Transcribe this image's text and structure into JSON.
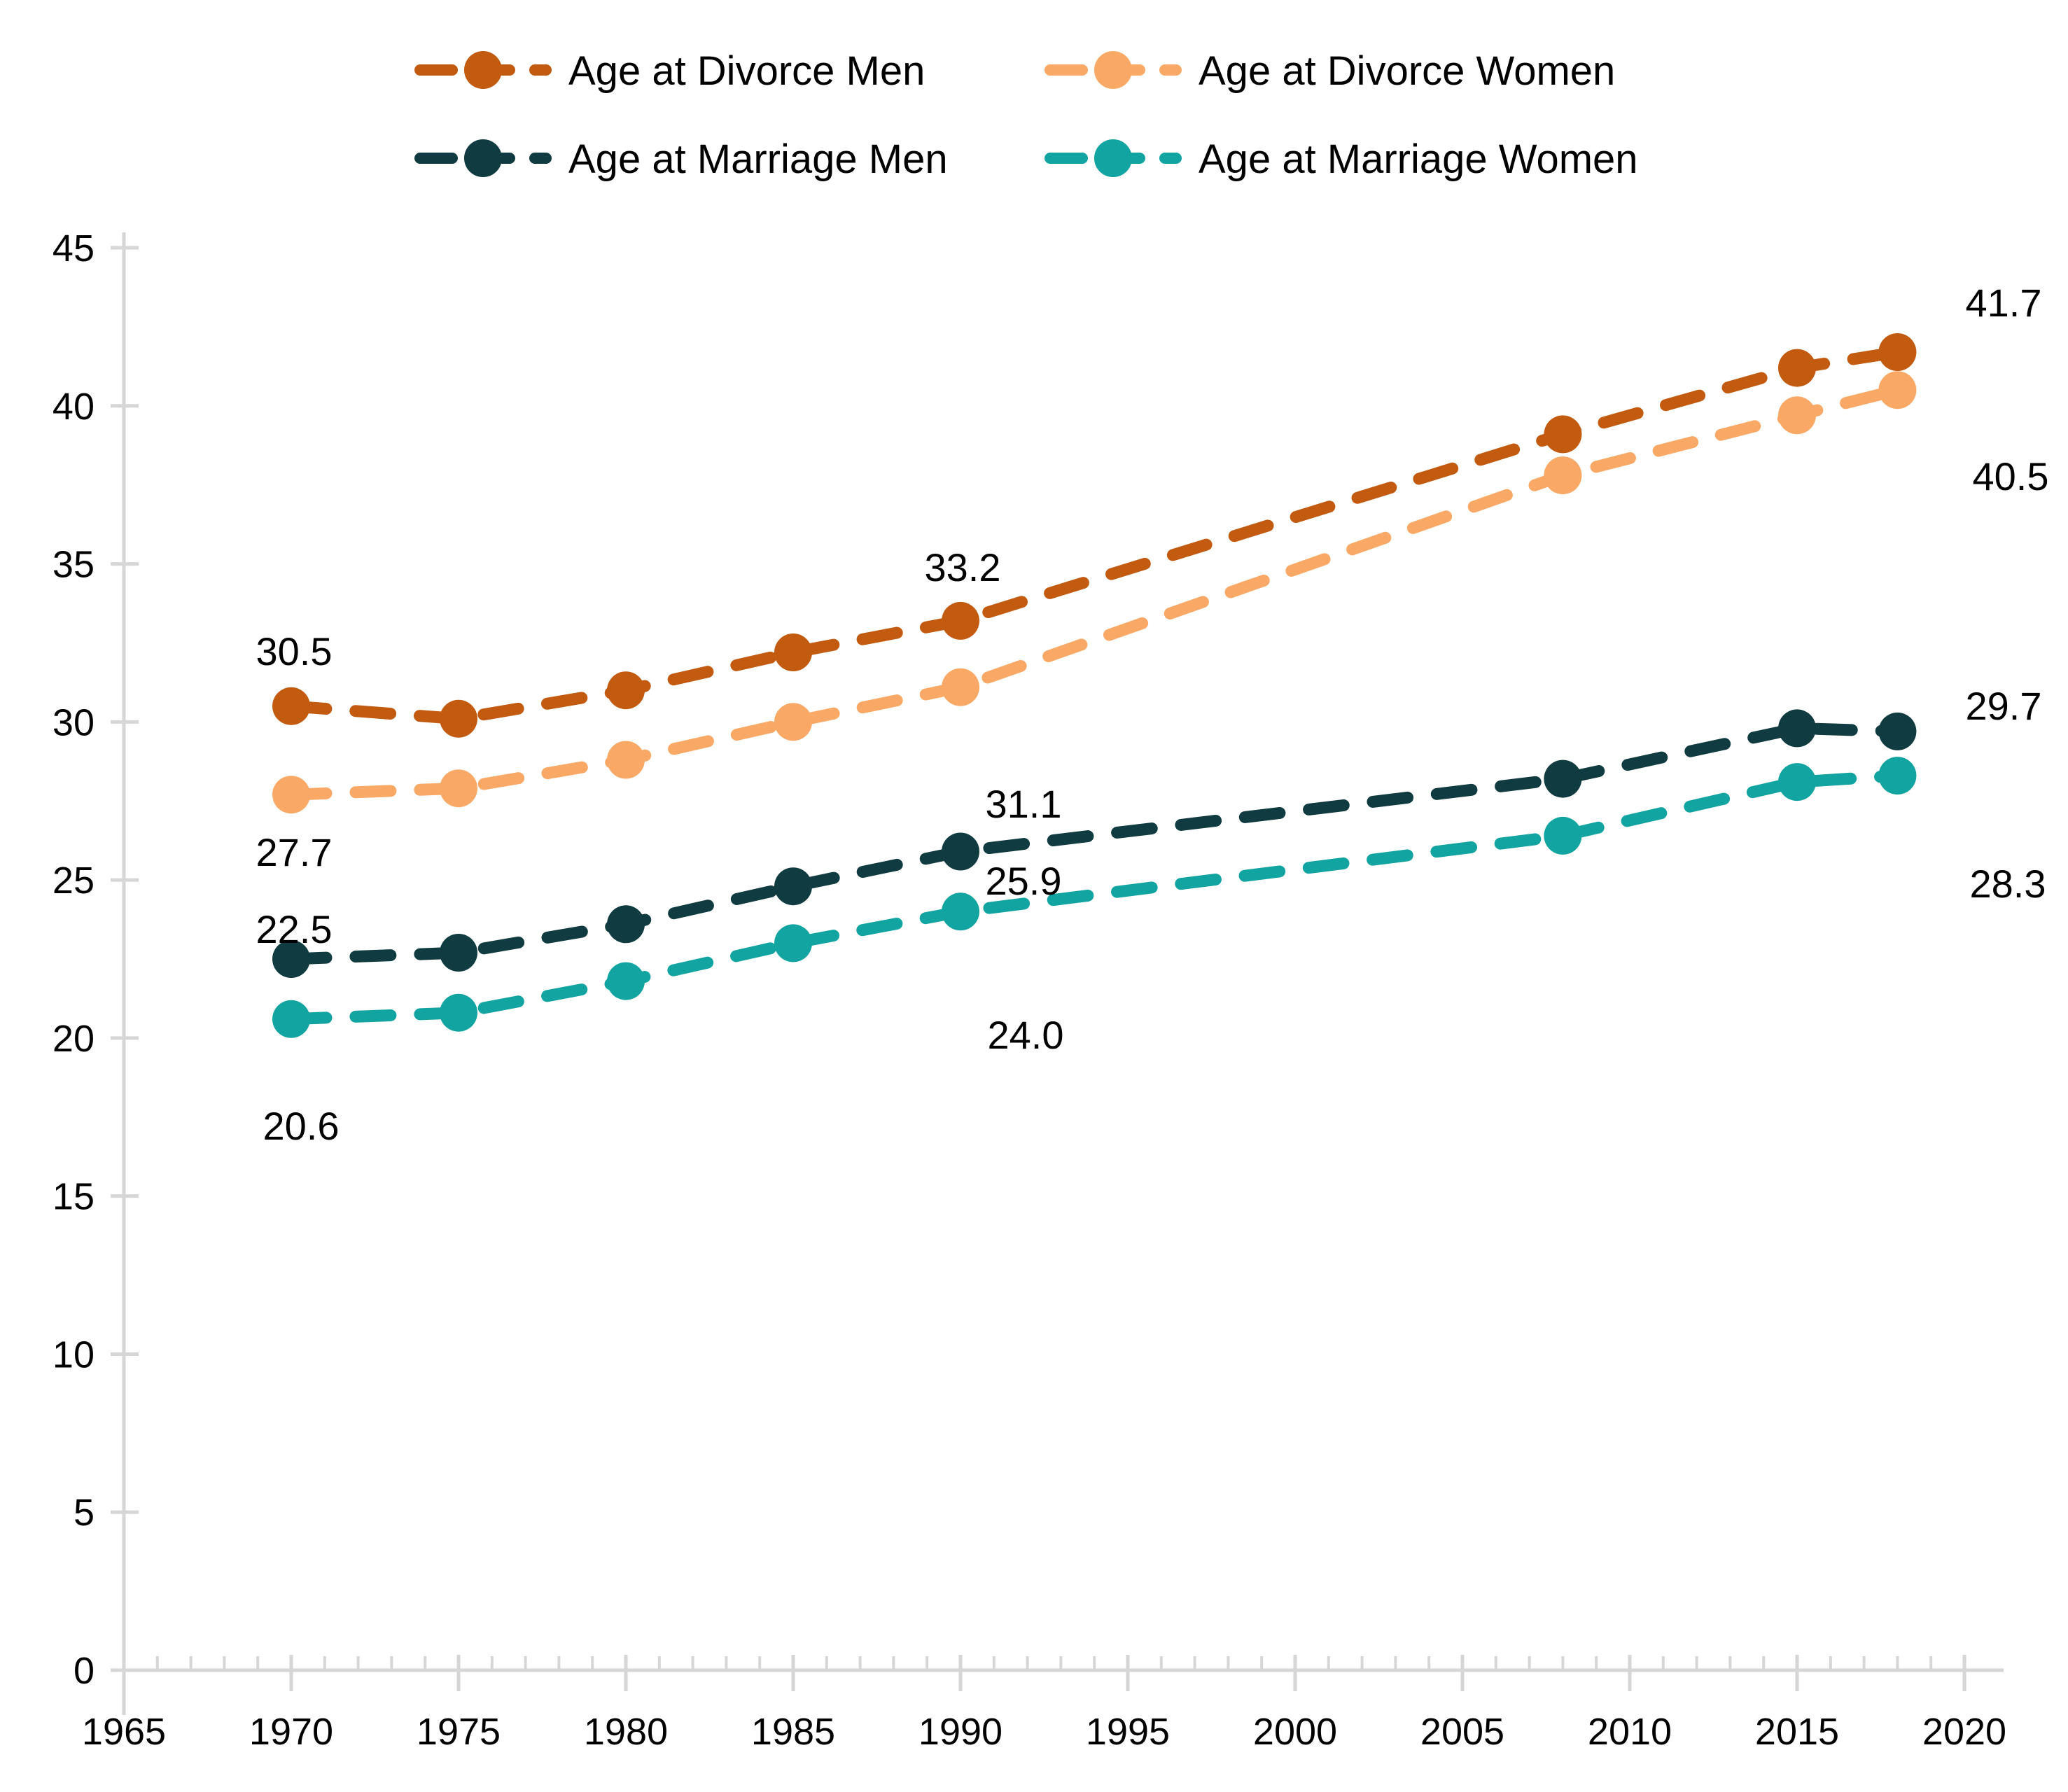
{
  "chart_data": {
    "type": "line",
    "title": "",
    "xlabel": "",
    "ylabel": "",
    "x": [
      1970,
      1975,
      1980,
      1985,
      1990,
      2008,
      2015,
      2018
    ],
    "series": [
      {
        "name": "Age at Divorce Men",
        "color": "#C25A10",
        "values": [
          30.5,
          30.1,
          31.0,
          32.2,
          33.2,
          39.1,
          41.2,
          41.7
        ]
      },
      {
        "name": "Age at Divorce Women",
        "color": "#F9A965",
        "values": [
          27.7,
          27.9,
          28.8,
          30.0,
          31.1,
          37.8,
          39.7,
          40.5
        ]
      },
      {
        "name": "Age at Marriage Men",
        "color": "#103B41",
        "values": [
          22.5,
          22.7,
          23.6,
          24.8,
          25.9,
          28.2,
          29.8,
          29.7
        ]
      },
      {
        "name": "Age at Marriage Women",
        "color": "#12A4A0",
        "values": [
          20.6,
          20.8,
          21.8,
          23.0,
          24.0,
          26.4,
          28.1,
          28.3
        ]
      }
    ],
    "xlim": [
      1965,
      2020
    ],
    "ylim": [
      0,
      45
    ],
    "y_ticks": [
      0,
      5,
      10,
      15,
      20,
      25,
      30,
      35,
      40,
      45
    ],
    "x_ticks_major": [
      1965,
      1970,
      1975,
      1980,
      1985,
      1990,
      1995,
      2000,
      2005,
      2010,
      2015,
      2020
    ],
    "x_tick_minor_step": 1,
    "grid": false,
    "legend_position": "top",
    "line_style": "dashed",
    "axis_color": "#D6D6D6",
    "text_color": "#000000",
    "background_color": "#FFFFFF",
    "data_labels": [
      {
        "text": "30.5",
        "ax": 420,
        "ay": 950
      },
      {
        "text": "27.7",
        "ax": 420,
        "ay": 1237
      },
      {
        "text": "22.5",
        "ax": 420,
        "ay": 1347
      },
      {
        "text": "20.6",
        "ax": 430,
        "ay": 1628
      },
      {
        "text": "33.2",
        "ax": 1375,
        "ay": 830
      },
      {
        "text": "31.1",
        "ax": 1462,
        "ay": 1168
      },
      {
        "text": "25.9",
        "ax": 1462,
        "ay": 1278
      },
      {
        "text": "24.0",
        "ax": 1465,
        "ay": 1498
      },
      {
        "text": "41.7",
        "ax": 2862,
        "ay": 452
      },
      {
        "text": "40.5",
        "ax": 2872,
        "ay": 700
      },
      {
        "text": "29.7",
        "ax": 2862,
        "ay": 1028
      },
      {
        "text": "28.3",
        "ax": 2868,
        "ay": 1282
      }
    ]
  }
}
